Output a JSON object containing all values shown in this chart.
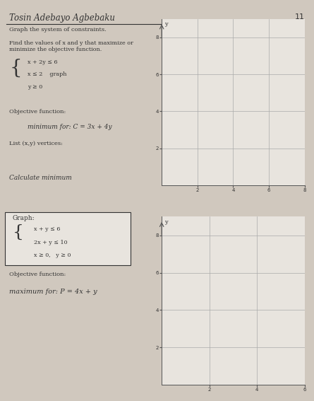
{
  "title": "Tosin Adebayo Agbebaku",
  "page_number": "11",
  "top_section": {
    "header": "Graph the system of constraints.",
    "subheader": "Find the values of x and y that maximize or\nminimize the objective function.",
    "constraints_line1": "x + 2y ≤ 6",
    "constraints_line2": "x ≤ 2    graph",
    "constraints_line3": "y ≥ 0",
    "objective_label": "Objective function:",
    "objective": "minimum for: C = 3x + 4y",
    "vertices_label": "List (x,y) vertices:",
    "calc_label": "Calculate minimum",
    "graph": {
      "xlim": [
        0,
        8
      ],
      "ylim": [
        0,
        9
      ],
      "xticks": [
        2,
        4,
        6,
        8
      ],
      "yticks": [
        2,
        4,
        6,
        8
      ],
      "grid_color": "#aaaaaa",
      "axis_color": "#555555"
    }
  },
  "bottom_section": {
    "box_label": "Graph:",
    "constraints_line1": "x + y ≤ 6",
    "constraints_line2": "2x + y ≤ 10",
    "constraints_line3": "x ≥ 0,   y ≥ 0",
    "objective_label": "Objective function:",
    "objective": "maximum for: P = 4x + y",
    "graph": {
      "xlim": [
        0,
        6
      ],
      "ylim": [
        0,
        9
      ],
      "xticks": [
        2,
        4,
        6
      ],
      "yticks": [
        2,
        4,
        6,
        8
      ],
      "grid_color": "#aaaaaa",
      "axis_color": "#555555"
    }
  },
  "bg_color": "#d0c8be",
  "paper_color": "#e8e4de",
  "divider_color": "#b0a898",
  "text_color": "#333333",
  "font_family": "serif"
}
